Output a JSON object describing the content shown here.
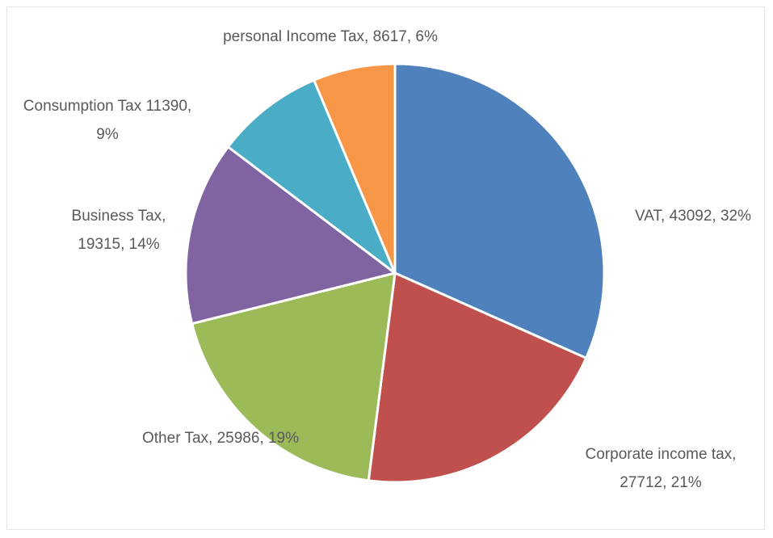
{
  "chart_data": {
    "type": "pie",
    "values": [
      43092,
      27712,
      25986,
      19315,
      11390,
      8617
    ],
    "value_labels": [
      "VAT, 43092, 32%",
      "Corporate income tax, 27712, 21%",
      "Other Tax, 25986, 19%",
      "Business Tax, 19315, 14%",
      "Consumption Tax 11390, 9%",
      "personal Income Tax, 8617, 6%"
    ],
    "colors": [
      "#4f81bd",
      "#c0504d",
      "#9bbb59",
      "#8064a2",
      "#4bacc6",
      "#f79646"
    ]
  }
}
